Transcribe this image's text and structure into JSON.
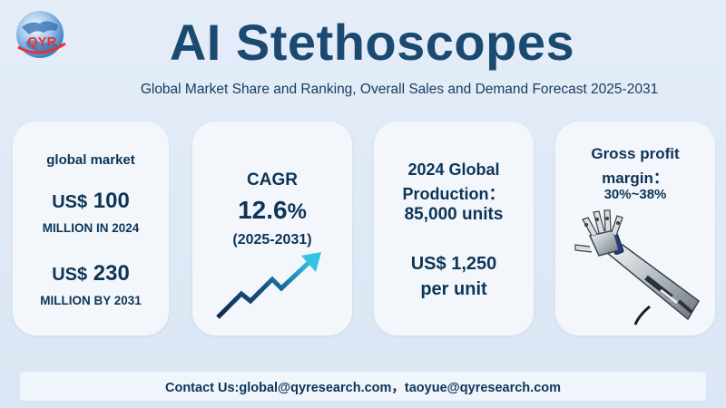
{
  "brand": {
    "logo_text": "QYR"
  },
  "header": {
    "title": "AI Stethoscopes",
    "subtitle": "Global Market Share and Ranking, Overall Sales and Demand Forecast 2025-2031"
  },
  "cards": {
    "market": {
      "label": "global market",
      "value_2024_currency": "US$",
      "value_2024": "100",
      "value_2024_caption": "MILLION IN 2024",
      "value_2031_currency": "US$",
      "value_2031": "230",
      "value_2031_caption": "MILLION BY 2031"
    },
    "cagr": {
      "label": "CAGR",
      "value": "12.6",
      "unit": "%",
      "period": "(2025-2031)",
      "icon": "trend-up-arrow-icon"
    },
    "production": {
      "line1": "2024 Global",
      "line2": "Production：",
      "line3": "85,000 units",
      "price_line1": "US$ 1,250",
      "price_line2": "per unit"
    },
    "margin": {
      "line1": "Gross profit",
      "line2": "margin：",
      "line3": "30%~38%",
      "image": "robotic-hand-image"
    }
  },
  "footer": {
    "contact": "Contact Us:global@qyresearch.com，taoyue@qyresearch.com"
  },
  "colors": {
    "title": "#1b4a70",
    "text": "#0d3557",
    "logo_red": "#e8332c",
    "arrow_dark": "#0f2a4a",
    "arrow_light": "#33c2e8"
  }
}
